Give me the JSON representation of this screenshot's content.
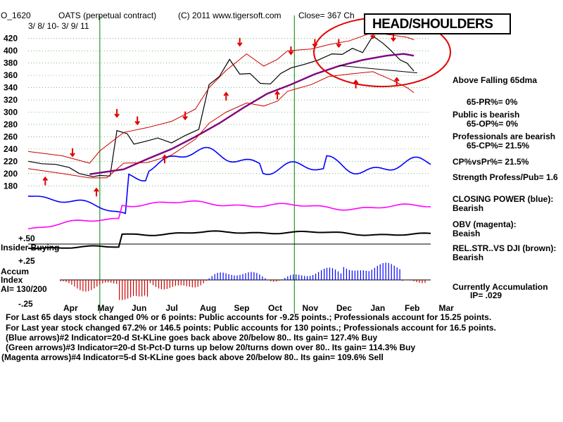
{
  "header": {
    "symbol": "O_1620",
    "name": "OATS (perpetual contract)",
    "copyright": "(C) 2011 www.tigersoft.com",
    "close": "Close=  367  Ch",
    "date_range": "3/ 8/ 10- 3/ 9/ 11"
  },
  "annotation": "HEAD/SHOULDERS",
  "right_panel": {
    "dma": "Above Falling 65dma",
    "pr": "65-PR%= 0%",
    "public": "Public is bearish",
    "op": "65-OP%= 0%",
    "pros": "Professionals are bearish",
    "cp": "65-CP%= 21.5%",
    "cpvspr": "CP%vsPr%=  21.5%",
    "strength": "Strength Profess/Pub= 1.6",
    "closing_power": "CLOSING POWER (blue):",
    "cp_state": "Bearish",
    "obv": "OBV (magenta):",
    "obv_state": "Beaish",
    "relstr": "REL.STR..VS DJI (brown):",
    "relstr_state": "Bearish",
    "accum_label": "Currently Accumulation",
    "ip": "IP=  .029"
  },
  "left_panel": {
    "plus50": "+.50",
    "insider": "Insider Buying",
    "plus25": "+.25",
    "accum": "Accum",
    "index": "Index",
    "ai": "AI= 130/200",
    "minus25": "-.25"
  },
  "footer": {
    "line1": "For Last 65 days stock changed  0% or  6 points:  Public accounts for -9.25 points.;  Professionals account for  15.25 points.",
    "line2": "For Last year stock changed  67.2% or  146.5 points:  Public accounts for  130 points.;  Professionals account for  16.5 points.",
    "line3": "(Blue arrows)#2 Indicator=20-d St-KLine goes back above 20/below 80.. Its gain= 127.4% Buy",
    "line4": "(Green arrows)#3 Indicator=20-d St-Pct-D turns up below 20/turns down over 80.. Its gain= 114.3% Buy",
    "line5": "(Magenta arrows)#4 Indicator=5-d St-KLine goes back above 20/below 80.. Its gain= 109.6% Sell"
  },
  "colors": {
    "price": "#000000",
    "bands": "#cc0000",
    "ma65": "#800080",
    "closing_power": "#0000ff",
    "obv": "#ff00ff",
    "relstr": "#000000",
    "accum_pos": "#0000ff",
    "accum_neg": "#cc0000",
    "markers": "#008000",
    "annotation": "#e00000"
  },
  "chart_data": {
    "type": "line",
    "xlabels": [
      "Apr",
      "May",
      "Jun",
      "Jul",
      "Aug",
      "Sep",
      "Oct",
      "Nov",
      "Dec",
      "Jan",
      "Feb",
      "Mar"
    ],
    "yticks": [
      180,
      200,
      220,
      240,
      260,
      280,
      300,
      320,
      340,
      360,
      380,
      400,
      420
    ],
    "ylim": [
      170,
      430
    ],
    "grid": true,
    "series": [
      {
        "values": [
          [
            0,
            220
          ],
          [
            0.4,
            216
          ],
          [
            0.8,
            215
          ],
          [
            1.2,
            210
          ],
          [
            1.5,
            200
          ],
          [
            1.9,
            195
          ],
          [
            2.1,
            197
          ],
          [
            2.4,
            196
          ],
          [
            2.6,
            270
          ],
          [
            2.9,
            265
          ],
          [
            3.1,
            248
          ],
          [
            3.4,
            252
          ],
          [
            3.8,
            258
          ],
          [
            4.2,
            250
          ],
          [
            4.6,
            262
          ],
          [
            5.0,
            272
          ],
          [
            5.3,
            345
          ],
          [
            5.6,
            358
          ],
          [
            5.9,
            386
          ],
          [
            6.2,
            362
          ],
          [
            6.5,
            363
          ],
          [
            6.8,
            347
          ],
          [
            7.1,
            346
          ],
          [
            7.4,
            363
          ],
          [
            7.7,
            372
          ],
          [
            8.1,
            378
          ],
          [
            8.5,
            385
          ],
          [
            8.9,
            395
          ],
          [
            9.2,
            394
          ],
          [
            9.5,
            404
          ],
          [
            9.8,
            397
          ],
          [
            10.1,
            424
          ],
          [
            10.4,
            412
          ],
          [
            10.6,
            402
          ],
          [
            10.9,
            385
          ],
          [
            11.1,
            380
          ],
          [
            11.3,
            367
          ]
        ]
      },
      {
        "values": [
          [
            1.8,
            199
          ],
          [
            2.8,
            207
          ],
          [
            3.5,
            224
          ],
          [
            4.2,
            240
          ],
          [
            4.9,
            260
          ],
          [
            5.6,
            282
          ],
          [
            6.3,
            307
          ],
          [
            7.0,
            330
          ],
          [
            7.7,
            345
          ],
          [
            8.4,
            362
          ],
          [
            9.1,
            375
          ],
          [
            9.8,
            385
          ],
          [
            10.5,
            392
          ],
          [
            11.0,
            395
          ],
          [
            11.3,
            392
          ]
        ]
      },
      {
        "values": [
          [
            0,
            236
          ],
          [
            1.0,
            229
          ],
          [
            1.8,
            217
          ],
          [
            2.1,
            237
          ],
          [
            2.8,
            267
          ],
          [
            3.5,
            275
          ],
          [
            4.2,
            285
          ],
          [
            4.9,
            305
          ],
          [
            5.3,
            340
          ],
          [
            5.8,
            368
          ],
          [
            6.4,
            395
          ],
          [
            6.9,
            375
          ],
          [
            7.3,
            386
          ],
          [
            7.6,
            400
          ],
          [
            8.3,
            403
          ],
          [
            8.8,
            410
          ],
          [
            9.4,
            416
          ],
          [
            10.1,
            430
          ],
          [
            10.6,
            426
          ],
          [
            11.1,
            422
          ],
          [
            11.3,
            418
          ]
        ]
      },
      {
        "values": [
          [
            0,
            208
          ],
          [
            1.0,
            200
          ],
          [
            1.8,
            193
          ],
          [
            2.3,
            193
          ],
          [
            2.8,
            217
          ],
          [
            3.5,
            218
          ],
          [
            4.2,
            230
          ],
          [
            4.9,
            256
          ],
          [
            5.3,
            282
          ],
          [
            5.8,
            300
          ],
          [
            6.4,
            315
          ],
          [
            6.9,
            310
          ],
          [
            7.3,
            318
          ],
          [
            7.6,
            334
          ],
          [
            8.3,
            345
          ],
          [
            8.8,
            358
          ],
          [
            9.4,
            362
          ],
          [
            10.1,
            366
          ],
          [
            10.6,
            354
          ],
          [
            11.1,
            340
          ],
          [
            11.3,
            332
          ]
        ]
      }
    ]
  },
  "markers": {
    "signal_dates": [
      2.1,
      7.8
    ]
  }
}
